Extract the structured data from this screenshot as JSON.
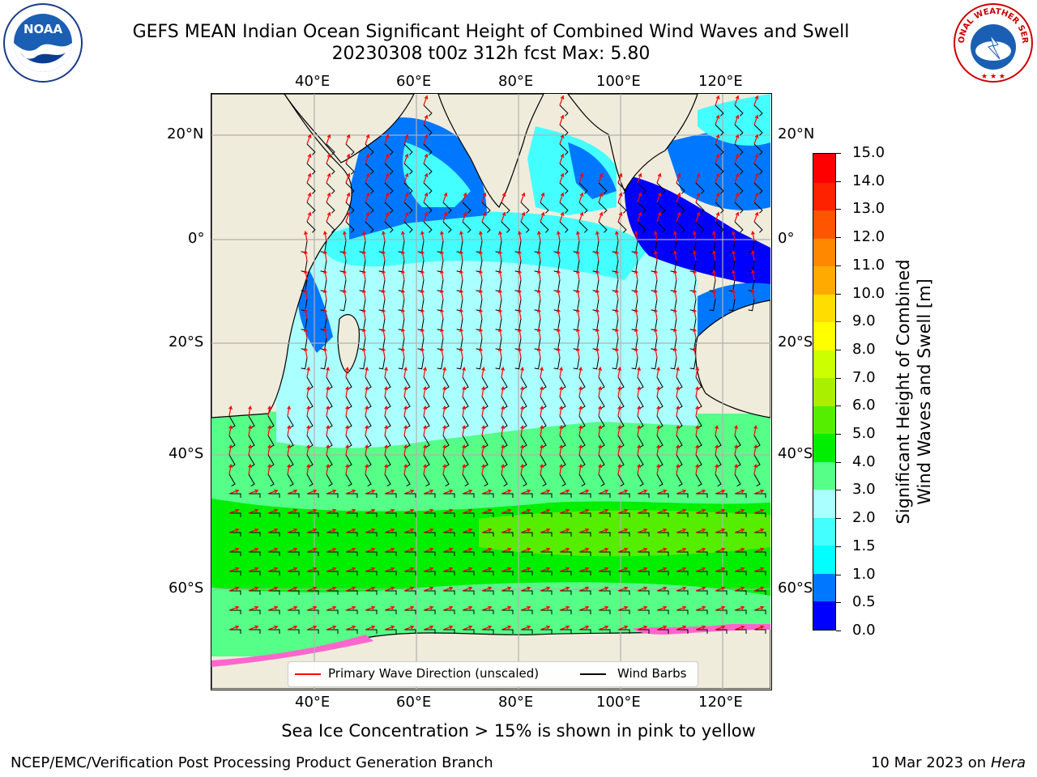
{
  "title_line1": "GEFS MEAN Indian Ocean Significant Height of Combined Wind Waves and Swell",
  "title_line2": "20230308 t00z 312h fcst   Max: 5.80",
  "logos": {
    "left_icon": "noaa-logo",
    "left_text": "NOAA",
    "right_icon": "national-weather-service-logo",
    "right_text": "NATIONAL WEATHER SERVICE"
  },
  "map": {
    "lon_range": [
      20,
      130
    ],
    "lat_range": [
      -73,
      27
    ],
    "lon_ticks": [
      "40°E",
      "60°E",
      "80°E",
      "100°E",
      "120°E"
    ],
    "lat_ticks": [
      "20°N",
      "0°",
      "20°S",
      "40°S",
      "60°S"
    ],
    "grid": true,
    "colors": {
      "land": "#efecdc",
      "gridline": "#b0b0b0",
      "wave_arrow": "#ff0000",
      "wind_barb": "#000000",
      "sea_ice": "#ff66cc"
    }
  },
  "colorbar": {
    "label": "Significant Height of Combined Wind Waves and Swell [m]",
    "label_line1": "Significant Height of Combined",
    "label_line2": "Wind Waves and Swell [m]",
    "ticks": [
      "0.0",
      "0.5",
      "1.0",
      "1.5",
      "2.0",
      "3.0",
      "4.0",
      "5.0",
      "6.0",
      "7.0",
      "8.0",
      "9.0",
      "10.0",
      "11.0",
      "12.0",
      "13.0",
      "14.0",
      "15.0"
    ],
    "colors": [
      "#0000ff",
      "#0077ff",
      "#00ffff",
      "#44ffff",
      "#aaffff",
      "#55ff88",
      "#00ee00",
      "#55ee00",
      "#aaee00",
      "#ccff00",
      "#ffff00",
      "#ffdd00",
      "#ffaa00",
      "#ff8800",
      "#ff5500",
      "#ff2200",
      "#ff0000"
    ]
  },
  "legend": {
    "wave_label": "Primary Wave Direction (unscaled)",
    "wind_label": "Wind Barbs"
  },
  "caption": "Sea Ice Concentration > 15% is shown in pink to yellow",
  "footer": {
    "left": "NCEP/EMC/Verification Post Processing Product Generation Branch",
    "date": "10 Mar 2023 on",
    "machine": "Hera"
  }
}
